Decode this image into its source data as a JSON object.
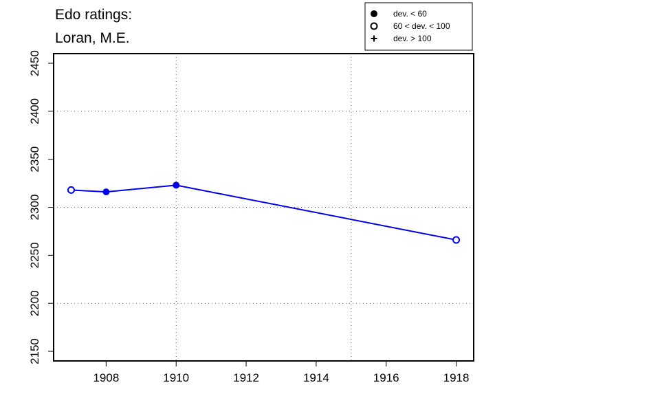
{
  "chart_data": {
    "type": "line",
    "title_lines": [
      "Edo ratings:",
      "Loran, M.E."
    ],
    "xlabel": "",
    "ylabel": "",
    "xlim": [
      1906.5,
      1918.5
    ],
    "ylim": [
      2140,
      2460
    ],
    "x_ticks": [
      1908,
      1910,
      1912,
      1914,
      1916,
      1918
    ],
    "y_ticks": [
      2150,
      2200,
      2250,
      2300,
      2350,
      2400,
      2450
    ],
    "x_grid": [
      1910,
      1915
    ],
    "y_grid": [
      2200,
      2300,
      2400
    ],
    "grid": true,
    "line_color": "#0000ee",
    "series": [
      {
        "points": [
          {
            "x": 1907,
            "y": 2318,
            "marker": "open-circle"
          },
          {
            "x": 1908,
            "y": 2316,
            "marker": "filled-circle"
          },
          {
            "x": 1910,
            "y": 2323,
            "marker": "filled-circle"
          },
          {
            "x": 1918,
            "y": 2266,
            "marker": "open-circle"
          }
        ]
      }
    ],
    "legend": {
      "position": "top-right",
      "entries": [
        {
          "marker": "filled-circle",
          "label": "dev. < 60"
        },
        {
          "marker": "open-circle",
          "label": "60 < dev. < 100"
        },
        {
          "marker": "plus",
          "label": "dev. > 100"
        }
      ]
    }
  }
}
